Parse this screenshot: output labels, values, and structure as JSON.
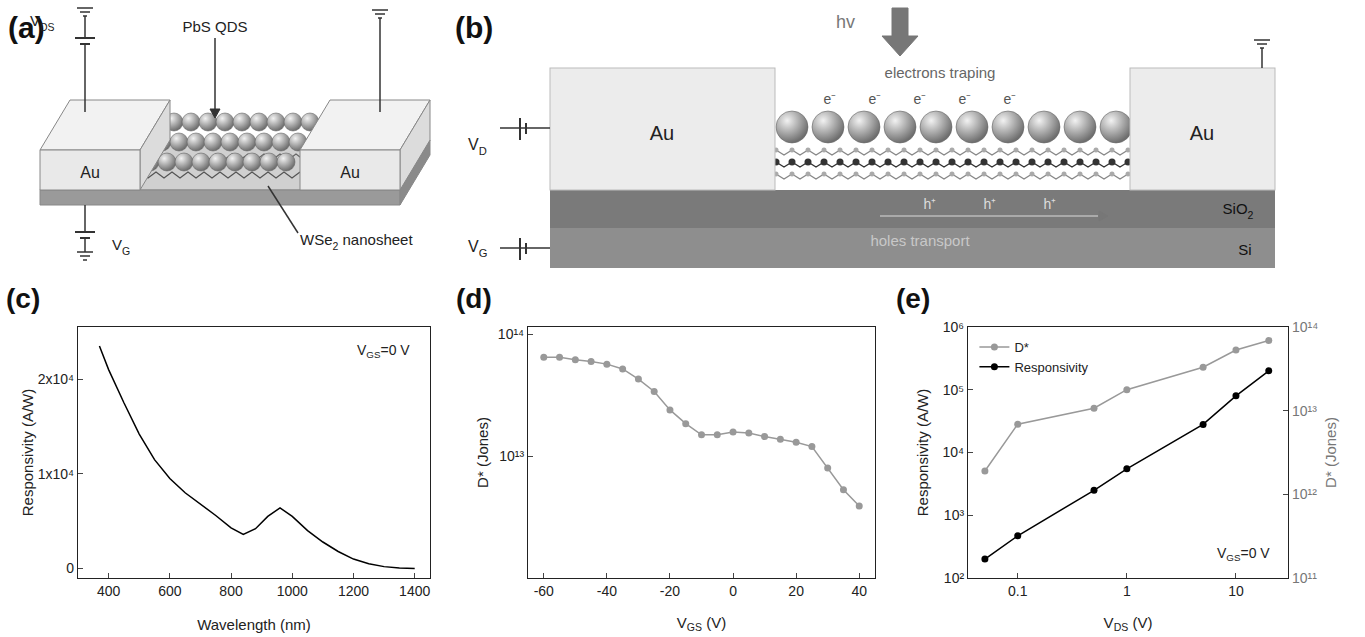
{
  "diagrams": {
    "a": {
      "panel": "(a)",
      "qd_label": "PbS QDS",
      "electrode_left": "Au",
      "electrode_right": "Au",
      "nanosheet_label": {
        "main": "WSe",
        "sub": "2",
        "tail": " nanosheet"
      },
      "drain_source": {
        "main": "V",
        "sub": "DS"
      },
      "gate": {
        "main": "V",
        "sub": "G"
      }
    },
    "b": {
      "panel": "(b)",
      "light": "hv",
      "electrons": "electrons traping",
      "electron_symbols": [
        "e⁻",
        "e⁻",
        "e⁻",
        "e⁻",
        "e⁻"
      ],
      "hole_symbols": [
        "h⁺",
        "h⁺",
        "h⁺"
      ],
      "electrode_left": "Au",
      "electrode_right": "Au",
      "oxide": {
        "main": "SiO",
        "sub": "2"
      },
      "substrate": "Si",
      "holes": "holes transport",
      "drain": {
        "main": "V",
        "sub": "D"
      },
      "gate": {
        "main": "V",
        "sub": "G"
      }
    }
  },
  "chart_data": [
    {
      "panel": "(c)",
      "type": "line",
      "color": "#000000",
      "x": [
        370,
        400,
        450,
        500,
        550,
        600,
        650,
        700,
        750,
        800,
        840,
        880,
        920,
        960,
        1000,
        1050,
        1100,
        1150,
        1200,
        1250,
        1300,
        1350,
        1400
      ],
      "values": [
        23500,
        21000,
        17500,
        14200,
        11500,
        9500,
        8000,
        6800,
        5600,
        4300,
        3600,
        4200,
        5500,
        6400,
        5500,
        4000,
        2800,
        1800,
        1000,
        500,
        200,
        50,
        0
      ],
      "xlabel": "Wavelength (nm)",
      "ylabel": "Responsivity (A/W)",
      "xlim": [
        300,
        1450
      ],
      "xticks": [
        400,
        600,
        800,
        1000,
        1200,
        1400
      ],
      "ylim": [
        -1000,
        25500
      ],
      "yticks": [
        0,
        {
          "value": 10000,
          "label": "1x10⁴"
        },
        {
          "value": 20000,
          "label": "2x10⁴"
        }
      ],
      "annotations": [
        {
          "main": "V",
          "sub": "GS",
          "tail": "=0 V"
        }
      ]
    },
    {
      "panel": "(d)",
      "type": "line",
      "marker": "circle",
      "color": "#999999",
      "log": "y",
      "x": [
        -60,
        -55,
        -50,
        -45,
        -40,
        -35,
        -30,
        -25,
        -20,
        -15,
        -10,
        -5,
        0,
        5,
        10,
        15,
        20,
        25,
        30,
        35,
        40
      ],
      "values": [
        65000000000000.0,
        65000000000000.0,
        62000000000000.0,
        60000000000000.0,
        57000000000000.0,
        52000000000000.0,
        43000000000000.0,
        34000000000000.0,
        24000000000000.0,
        18500000000000.0,
        15000000000000.0,
        15000000000000.0,
        15800000000000.0,
        15500000000000.0,
        14500000000000.0,
        13800000000000.0,
        13000000000000.0,
        12000000000000.0,
        8000000000000.0,
        5300000000000.0,
        3900000000000.0
      ],
      "xlabel": {
        "main": "V",
        "sub": "GS",
        "tail": " (V)"
      },
      "ylabel": "D* (Jones)",
      "xlim": [
        -65,
        45
      ],
      "xticks": [
        -60,
        -40,
        -20,
        0,
        20,
        40
      ],
      "ylim": [
        1000000000000.0,
        115000000000000.0
      ],
      "yticks": [
        {
          "value": 10000000000000.0,
          "label": "10¹³"
        },
        {
          "value": 100000000000000.0,
          "label": "10¹⁴"
        }
      ]
    },
    {
      "panel": "(e)",
      "type": "line",
      "marker": "circle",
      "log": true,
      "legend": "upper left",
      "x": [
        0.05,
        0.1,
        0.5,
        1,
        5,
        10,
        20
      ],
      "series": [
        {
          "name": "D*",
          "color": "#999999",
          "axis": "y2",
          "values": [
            1900000000000.0,
            6900000000000.0,
            10700000000000.0,
            17800000000000.0,
            33000000000000.0,
            53000000000000.0,
            69000000000000.0
          ]
        },
        {
          "name": "Responsivity",
          "color": "#000000",
          "values": [
            200,
            470,
            2500,
            5500,
            28000,
            80000,
            200000
          ]
        }
      ],
      "xlabel": {
        "main": "V",
        "sub": "DS",
        "tail": " (V)"
      },
      "ylabel": "Responsivity (A/W)",
      "y2label": "D* (Jones)",
      "xlim": [
        0.035,
        30
      ],
      "xticks": [
        0.1,
        1,
        10
      ],
      "ylim": [
        100,
        1000000
      ],
      "yticks": [
        {
          "value": 100,
          "label": "10²"
        },
        {
          "value": 1000,
          "label": "10³"
        },
        {
          "value": 10000,
          "label": "10⁴"
        },
        {
          "value": 100000,
          "label": "10⁵"
        },
        {
          "value": 1000000,
          "label": "10⁶"
        }
      ],
      "y2lim": [
        100000000000.0,
        100000000000000.0
      ],
      "y2ticks": [
        {
          "value": 100000000000.0,
          "label": "10¹¹"
        },
        {
          "value": 1000000000000.0,
          "label": "10¹²"
        },
        {
          "value": 10000000000000.0,
          "label": "10¹³"
        },
        {
          "value": 100000000000000.0,
          "label": "10¹⁴"
        }
      ],
      "annotations": [
        {
          "main": "V",
          "sub": "GS",
          "tail": "=0 V"
        }
      ]
    }
  ]
}
